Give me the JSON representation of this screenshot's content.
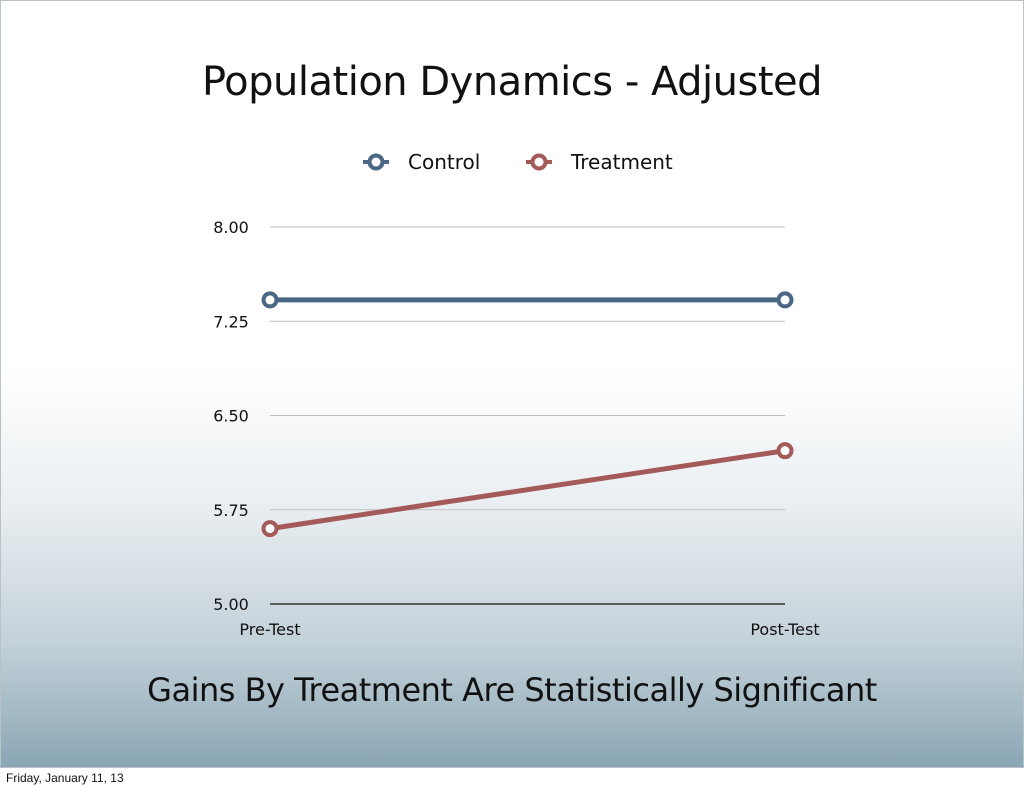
{
  "slide": {
    "title": "Population Dynamics - Adjusted",
    "subtitle": "Gains By Treatment Are Statistically Significant"
  },
  "footer": {
    "date": "Friday, January 11, 13"
  },
  "colors": {
    "control": "#4a6885",
    "treatment": "#a55a5a",
    "grid": "#bfbfbf",
    "axis": "#333333"
  },
  "chart_data": {
    "type": "line",
    "title": "Population Dynamics - Adjusted",
    "categories": [
      "Pre-Test",
      "Post-Test"
    ],
    "series": [
      {
        "name": "Control",
        "values": [
          7.42,
          7.42
        ]
      },
      {
        "name": "Treatment",
        "values": [
          5.6,
          6.22
        ]
      }
    ],
    "ylim": [
      5.0,
      8.0
    ],
    "yticks": [
      "5.00",
      "5.75",
      "6.50",
      "7.25",
      "8.00"
    ],
    "grid": true,
    "legend": "top-center"
  }
}
